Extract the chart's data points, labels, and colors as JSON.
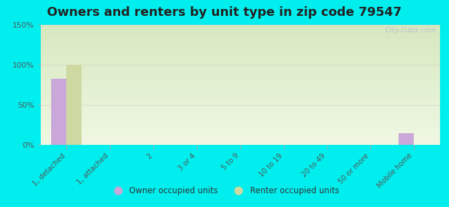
{
  "title": "Owners and renters by unit type in zip code 79547",
  "categories": [
    "1, detached",
    "1, attached",
    "2",
    "3 or 4",
    "5 to 9",
    "10 to 19",
    "20 to 49",
    "50 or more",
    "Mobile home"
  ],
  "owner_values": [
    83,
    0,
    0,
    0,
    0,
    0,
    0,
    0,
    15
  ],
  "renter_values": [
    100,
    0,
    0,
    0,
    0,
    0,
    0,
    0,
    0
  ],
  "owner_color": "#c9a8d9",
  "renter_color": "#cdd9a0",
  "background_color": "#00eeee",
  "gradient_top": "#d8e8c0",
  "gradient_bottom": "#eef5e0",
  "ylim": [
    0,
    150
  ],
  "yticks": [
    0,
    50,
    100,
    150
  ],
  "ytick_labels": [
    "0%",
    "50%",
    "100%",
    "150%"
  ],
  "watermark": "City-Data.com",
  "legend_owner": "Owner occupied units",
  "legend_renter": "Renter occupied units",
  "title_fontsize": 13,
  "bar_width": 0.35,
  "grid_color": "#ddddcc"
}
